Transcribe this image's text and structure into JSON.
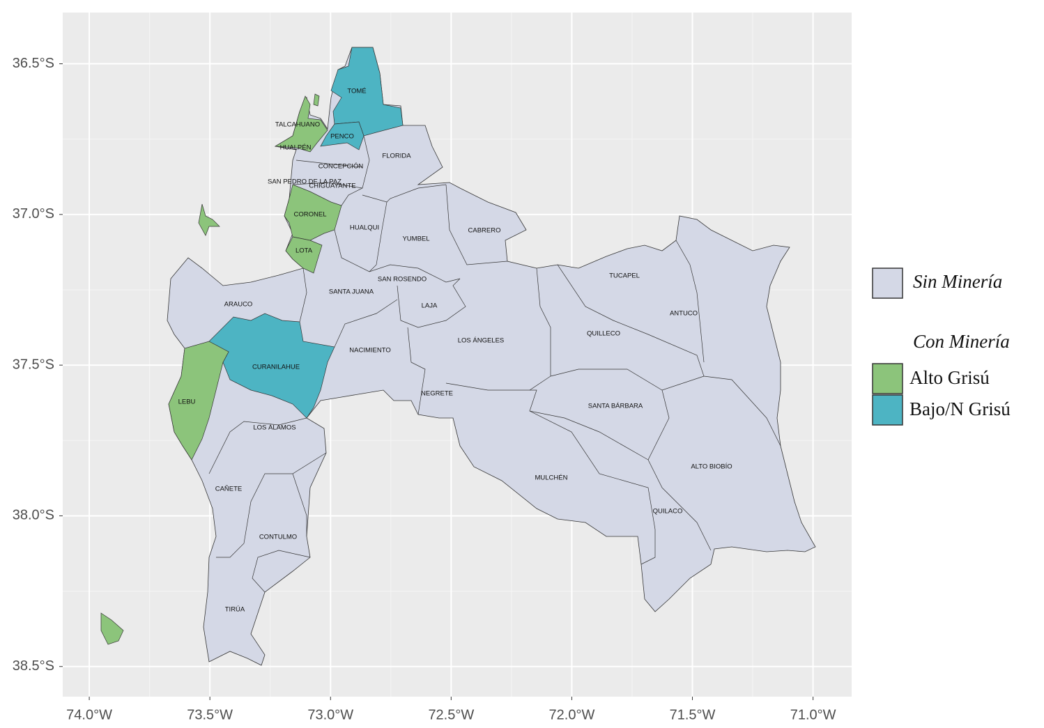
{
  "map": {
    "xlim": [
      -74.11,
      -70.84
    ],
    "ylim": [
      -38.6,
      -36.33
    ],
    "xticks": [
      {
        "value": -74.0,
        "label": "74.0°W"
      },
      {
        "value": -73.5,
        "label": "73.5°W"
      },
      {
        "value": -73.0,
        "label": "73.0°W"
      },
      {
        "value": -72.5,
        "label": "72.5°W"
      },
      {
        "value": -72.0,
        "label": "72.0°W"
      },
      {
        "value": -71.5,
        "label": "71.5°W"
      },
      {
        "value": -71.0,
        "label": "71.0°W"
      }
    ],
    "yticks": [
      {
        "value": -36.5,
        "label": "36.5°S"
      },
      {
        "value": -37.0,
        "label": "37.0°S"
      },
      {
        "value": -37.5,
        "label": "37.5°S"
      },
      {
        "value": -38.0,
        "label": "38.0°S"
      },
      {
        "value": -38.5,
        "label": "38.5°S"
      }
    ],
    "grid": true,
    "legend": {
      "base": {
        "label": "Sin Minería",
        "color": "#d4d8e6"
      },
      "title": "Con Minería",
      "entries": [
        {
          "label": "Alto Grisú",
          "color": "#8cc47b"
        },
        {
          "label": "Bajo/N Grisú",
          "color": "#4db4c3"
        }
      ]
    },
    "regions": [
      {
        "name": "TOMÉ",
        "class": "Bajo/N Grisú"
      },
      {
        "name": "TALCAHUANO",
        "class": "Alto Grisú"
      },
      {
        "name": "PENCO",
        "class": "Bajo/N Grisú"
      },
      {
        "name": "HUALPÉN",
        "class": "Sin Minería"
      },
      {
        "name": "FLORIDA",
        "class": "Sin Minería"
      },
      {
        "name": "CONCEPCIÓN",
        "class": "Sin Minería"
      },
      {
        "name": "SAN PEDRO DE LA PAZ",
        "class": "Sin Minería"
      },
      {
        "name": "CHIGUAYANTE",
        "class": "Sin Minería"
      },
      {
        "name": "CORONEL",
        "class": "Alto Grisú"
      },
      {
        "name": "HUALQUI",
        "class": "Sin Minería"
      },
      {
        "name": "YUMBEL",
        "class": "Sin Minería"
      },
      {
        "name": "CABRERO",
        "class": "Sin Minería"
      },
      {
        "name": "LOTA",
        "class": "Alto Grisú"
      },
      {
        "name": "TUCAPEL",
        "class": "Sin Minería"
      },
      {
        "name": "SAN ROSENDO",
        "class": "Sin Minería"
      },
      {
        "name": "SANTA JUANA",
        "class": "Sin Minería"
      },
      {
        "name": "ARAUCO",
        "class": "Sin Minería"
      },
      {
        "name": "LAJA",
        "class": "Sin Minería"
      },
      {
        "name": "ANTUCO",
        "class": "Sin Minería"
      },
      {
        "name": "QUILLECO",
        "class": "Sin Minería"
      },
      {
        "name": "LOS ÁNGELES",
        "class": "Sin Minería"
      },
      {
        "name": "NACIMIENTO",
        "class": "Sin Minería"
      },
      {
        "name": "CURANILAHUE",
        "class": "Bajo/N Grisú"
      },
      {
        "name": "NEGRETE",
        "class": "Sin Minería"
      },
      {
        "name": "LEBU",
        "class": "Alto Grisú"
      },
      {
        "name": "SANTA BÁRBARA",
        "class": "Sin Minería"
      },
      {
        "name": "LOS ÁLAMOS",
        "class": "Sin Minería"
      },
      {
        "name": "ALTO BIOBÍO",
        "class": "Sin Minería"
      },
      {
        "name": "MULCHÉN",
        "class": "Sin Minería"
      },
      {
        "name": "CAÑETE",
        "class": "Sin Minería"
      },
      {
        "name": "QUILACO",
        "class": "Sin Minería"
      },
      {
        "name": "CONTULMO",
        "class": "Sin Minería"
      },
      {
        "name": "TIRÚA",
        "class": "Sin Minería"
      }
    ]
  }
}
